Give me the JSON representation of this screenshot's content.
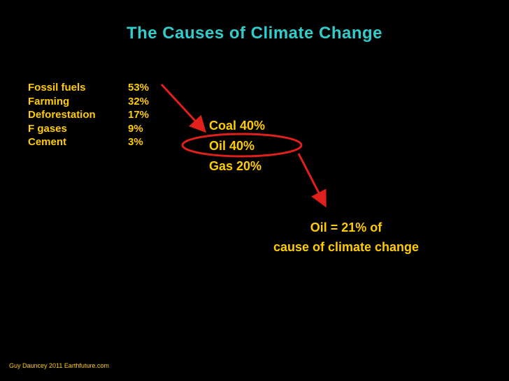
{
  "title": "The Causes of Climate Change",
  "causes": [
    {
      "label": "Fossil fuels",
      "percent": "53%"
    },
    {
      "label": "Farming",
      "percent": "32%"
    },
    {
      "label": "Deforestation",
      "percent": "17%"
    },
    {
      "label": "F gases",
      "percent": "9%"
    },
    {
      "label": "Cement",
      "percent": "3%"
    }
  ],
  "fossil_fuel_split": [
    {
      "text": "Coal 40%"
    },
    {
      "text": "Oil 40%"
    },
    {
      "text": "Gas 20%"
    }
  ],
  "conclusion": {
    "line1": "Oil = 21% of",
    "line2": "cause of climate change"
  },
  "credit": "Guy Dauncey 2011 Earthfuture.com",
  "colors": {
    "background": "#000000",
    "title": "#33CCCC",
    "body_text": "#FFCC00",
    "annotation": "#E0201B"
  }
}
